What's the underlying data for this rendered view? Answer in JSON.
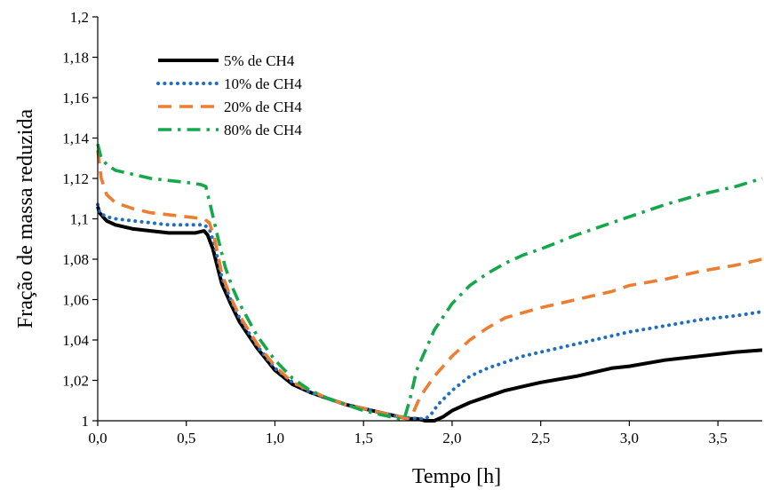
{
  "chart_data": {
    "type": "line",
    "title": "",
    "xlabel": "Tempo [h]",
    "ylabel": "Fração de massa reduzida",
    "xlim": [
      0,
      3.75
    ],
    "ylim": [
      1,
      1.2
    ],
    "grid": false,
    "legend_position": "top-left",
    "x_ticks": [
      0,
      0.5,
      1.0,
      1.5,
      2.0,
      2.5,
      3.0,
      3.5
    ],
    "x_tick_labels": [
      "0,0",
      "0,5",
      "1,0",
      "1,5",
      "2,0",
      "2,5",
      "3,0",
      "3,5"
    ],
    "y_ticks": [
      1,
      1.02,
      1.04,
      1.06,
      1.08,
      1.1,
      1.12,
      1.14,
      1.16,
      1.18,
      1.2
    ],
    "y_tick_labels": [
      "1",
      "1,02",
      "1,04",
      "1,06",
      "1,08",
      "1,1",
      "1,12",
      "1,14",
      "1,16",
      "1,18",
      "1,2"
    ],
    "series": [
      {
        "name": "5% de CH4",
        "color": "#000000",
        "style": "solid",
        "points": [
          [
            0,
            1.106
          ],
          [
            0.01,
            1.103
          ],
          [
            0.05,
            1.099
          ],
          [
            0.1,
            1.097
          ],
          [
            0.2,
            1.095
          ],
          [
            0.3,
            1.094
          ],
          [
            0.4,
            1.093
          ],
          [
            0.5,
            1.093
          ],
          [
            0.55,
            1.093
          ],
          [
            0.6,
            1.094
          ],
          [
            0.62,
            1.092
          ],
          [
            0.65,
            1.085
          ],
          [
            0.7,
            1.068
          ],
          [
            0.75,
            1.058
          ],
          [
            0.8,
            1.049
          ],
          [
            0.9,
            1.036
          ],
          [
            1.0,
            1.025
          ],
          [
            1.1,
            1.018
          ],
          [
            1.2,
            1.014
          ],
          [
            1.3,
            1.011
          ],
          [
            1.4,
            1.008
          ],
          [
            1.5,
            1.006
          ],
          [
            1.6,
            1.004
          ],
          [
            1.7,
            1.002
          ],
          [
            1.75,
            1.001
          ],
          [
            1.8,
            1.001
          ],
          [
            1.85,
            1.0
          ],
          [
            1.9,
            1.0
          ],
          [
            1.95,
            1.002
          ],
          [
            2.0,
            1.005
          ],
          [
            2.1,
            1.009
          ],
          [
            2.2,
            1.012
          ],
          [
            2.3,
            1.015
          ],
          [
            2.4,
            1.017
          ],
          [
            2.5,
            1.019
          ],
          [
            2.7,
            1.022
          ],
          [
            2.9,
            1.026
          ],
          [
            3.0,
            1.027
          ],
          [
            3.2,
            1.03
          ],
          [
            3.4,
            1.032
          ],
          [
            3.6,
            1.034
          ],
          [
            3.75,
            1.035
          ]
        ]
      },
      {
        "name": "10% de CH4",
        "color": "#1F6FC0",
        "style": "dotted",
        "points": [
          [
            0,
            1.107
          ],
          [
            0.01,
            1.103
          ],
          [
            0.05,
            1.101
          ],
          [
            0.1,
            1.1
          ],
          [
            0.2,
            1.099
          ],
          [
            0.3,
            1.098
          ],
          [
            0.4,
            1.097
          ],
          [
            0.5,
            1.097
          ],
          [
            0.6,
            1.097
          ],
          [
            0.63,
            1.095
          ],
          [
            0.66,
            1.087
          ],
          [
            0.7,
            1.071
          ],
          [
            0.75,
            1.06
          ],
          [
            0.8,
            1.051
          ],
          [
            0.9,
            1.037
          ],
          [
            1.0,
            1.026
          ],
          [
            1.1,
            1.019
          ],
          [
            1.2,
            1.014
          ],
          [
            1.3,
            1.011
          ],
          [
            1.4,
            1.008
          ],
          [
            1.5,
            1.006
          ],
          [
            1.6,
            1.004
          ],
          [
            1.7,
            1.002
          ],
          [
            1.8,
            1.001
          ],
          [
            1.85,
            1.001
          ],
          [
            1.88,
            1.003
          ],
          [
            1.92,
            1.008
          ],
          [
            2.0,
            1.015
          ],
          [
            2.1,
            1.022
          ],
          [
            2.2,
            1.026
          ],
          [
            2.3,
            1.029
          ],
          [
            2.4,
            1.032
          ],
          [
            2.5,
            1.034
          ],
          [
            2.7,
            1.038
          ],
          [
            2.9,
            1.042
          ],
          [
            3.0,
            1.044
          ],
          [
            3.2,
            1.047
          ],
          [
            3.4,
            1.05
          ],
          [
            3.6,
            1.052
          ],
          [
            3.75,
            1.054
          ]
        ]
      },
      {
        "name": "20% de CH4",
        "color": "#ED7D31",
        "style": "dashed",
        "points": [
          [
            0,
            1.134
          ],
          [
            0.02,
            1.12
          ],
          [
            0.05,
            1.112
          ],
          [
            0.1,
            1.108
          ],
          [
            0.2,
            1.105
          ],
          [
            0.3,
            1.103
          ],
          [
            0.4,
            1.102
          ],
          [
            0.5,
            1.101
          ],
          [
            0.6,
            1.1
          ],
          [
            0.63,
            1.098
          ],
          [
            0.66,
            1.09
          ],
          [
            0.7,
            1.073
          ],
          [
            0.75,
            1.061
          ],
          [
            0.8,
            1.052
          ],
          [
            0.9,
            1.038
          ],
          [
            1.0,
            1.027
          ],
          [
            1.1,
            1.019
          ],
          [
            1.2,
            1.015
          ],
          [
            1.3,
            1.011
          ],
          [
            1.4,
            1.008
          ],
          [
            1.5,
            1.006
          ],
          [
            1.6,
            1.004
          ],
          [
            1.7,
            1.002
          ],
          [
            1.75,
            1.001
          ],
          [
            1.78,
            1.004
          ],
          [
            1.82,
            1.012
          ],
          [
            1.9,
            1.022
          ],
          [
            2.0,
            1.032
          ],
          [
            2.1,
            1.04
          ],
          [
            2.2,
            1.046
          ],
          [
            2.3,
            1.051
          ],
          [
            2.5,
            1.056
          ],
          [
            2.7,
            1.06
          ],
          [
            2.9,
            1.064
          ],
          [
            3.0,
            1.067
          ],
          [
            3.2,
            1.07
          ],
          [
            3.4,
            1.074
          ],
          [
            3.6,
            1.077
          ],
          [
            3.75,
            1.08
          ]
        ]
      },
      {
        "name": "80% de CH4",
        "color": "#14A84B",
        "style": "dashdot",
        "points": [
          [
            0,
            1.137
          ],
          [
            0.02,
            1.13
          ],
          [
            0.05,
            1.127
          ],
          [
            0.1,
            1.124
          ],
          [
            0.2,
            1.122
          ],
          [
            0.3,
            1.12
          ],
          [
            0.4,
            1.119
          ],
          [
            0.5,
            1.118
          ],
          [
            0.58,
            1.117
          ],
          [
            0.61,
            1.116
          ],
          [
            0.64,
            1.105
          ],
          [
            0.68,
            1.09
          ],
          [
            0.72,
            1.076
          ],
          [
            0.76,
            1.066
          ],
          [
            0.8,
            1.058
          ],
          [
            0.9,
            1.042
          ],
          [
            1.0,
            1.03
          ],
          [
            1.1,
            1.021
          ],
          [
            1.2,
            1.015
          ],
          [
            1.3,
            1.011
          ],
          [
            1.4,
            1.008
          ],
          [
            1.5,
            1.005
          ],
          [
            1.6,
            1.003
          ],
          [
            1.7,
            1.001
          ],
          [
            1.73,
            1.001
          ],
          [
            1.76,
            1.01
          ],
          [
            1.8,
            1.025
          ],
          [
            1.9,
            1.045
          ],
          [
            2.0,
            1.058
          ],
          [
            2.1,
            1.067
          ],
          [
            2.2,
            1.073
          ],
          [
            2.3,
            1.078
          ],
          [
            2.4,
            1.082
          ],
          [
            2.5,
            1.085
          ],
          [
            2.7,
            1.092
          ],
          [
            2.9,
            1.098
          ],
          [
            3.0,
            1.101
          ],
          [
            3.2,
            1.107
          ],
          [
            3.4,
            1.112
          ],
          [
            3.6,
            1.116
          ],
          [
            3.75,
            1.12
          ]
        ]
      }
    ]
  }
}
